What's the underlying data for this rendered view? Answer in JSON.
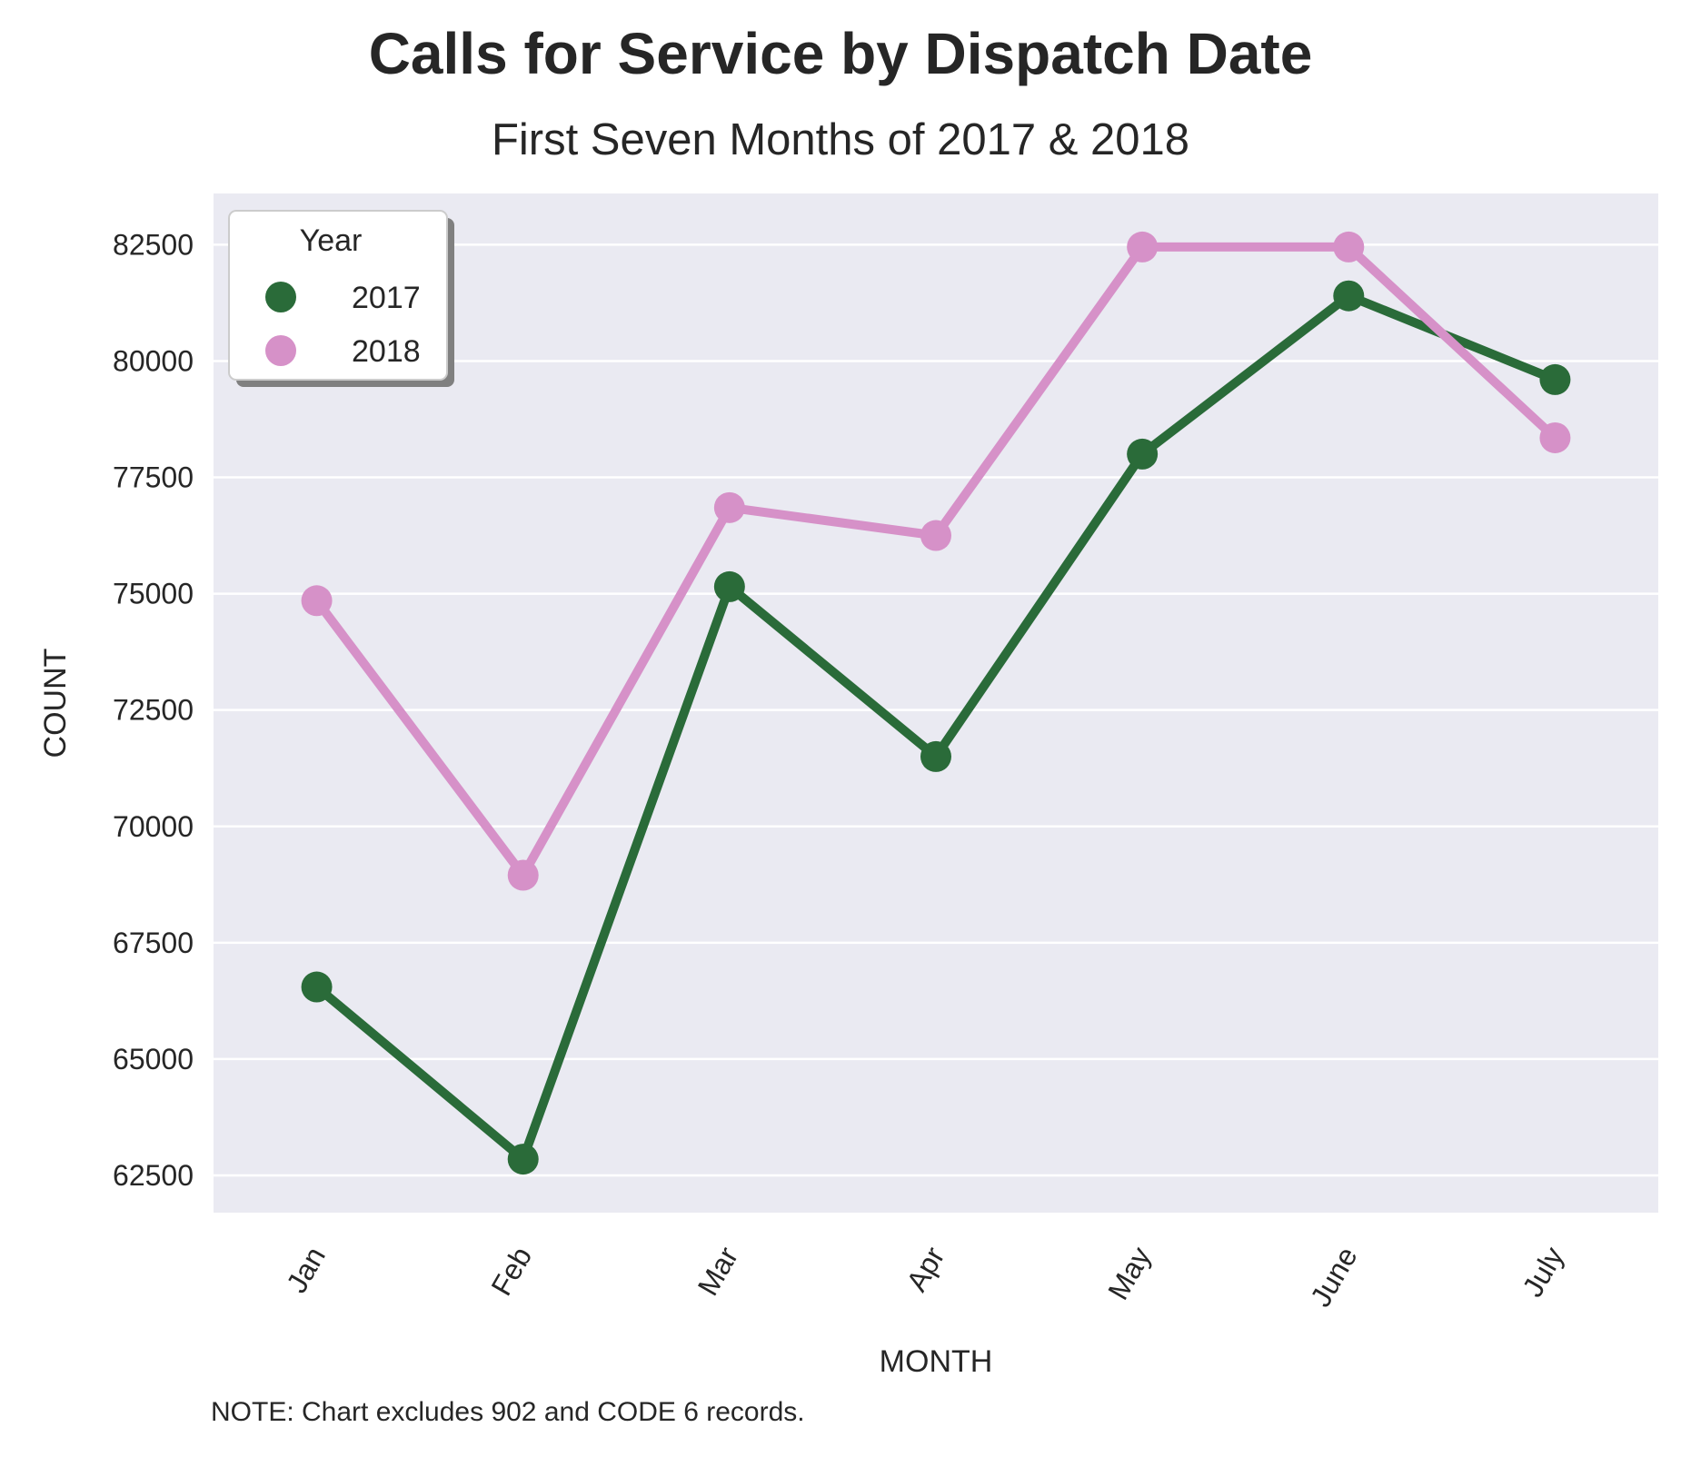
{
  "chart_data": {
    "type": "line",
    "title": "Calls for Service by Dispatch Date",
    "subtitle": "First Seven Months of 2017 & 2018",
    "xlabel": "MONTH",
    "ylabel": "COUNT",
    "categories": [
      "Jan",
      "Feb",
      "Mar",
      "Apr",
      "May",
      "June",
      "July"
    ],
    "y_ticks": [
      62500,
      65000,
      67500,
      70000,
      72500,
      75000,
      77500,
      80000,
      82500
    ],
    "ylim": [
      61700,
      83600
    ],
    "grid": true,
    "legend": {
      "title": "Year",
      "position": "top-left"
    },
    "series": [
      {
        "name": "2017",
        "color": "#2a6b39",
        "values": [
          66550,
          62850,
          75150,
          71500,
          78000,
          81400,
          79600
        ]
      },
      {
        "name": "2018",
        "color": "#d691c8",
        "values": [
          74850,
          68950,
          76850,
          76250,
          82450,
          82450,
          78350
        ]
      }
    ],
    "note": "NOTE: Chart excludes 902 and CODE 6 records.",
    "colors": {
      "plot_background": "#eaeaf2",
      "grid": "#ffffff"
    }
  }
}
